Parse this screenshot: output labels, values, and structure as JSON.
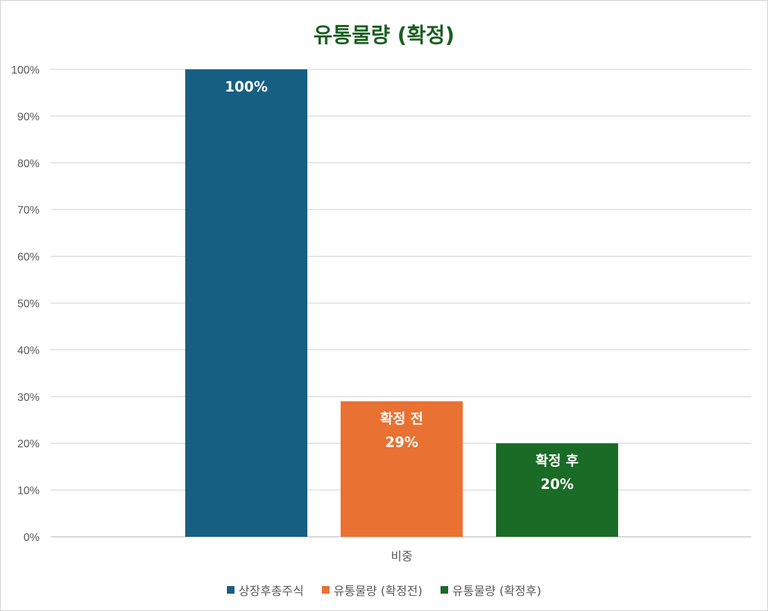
{
  "chart_data": {
    "type": "bar",
    "title": "유통물량 (확정)",
    "categories": [
      "비중"
    ],
    "series": [
      {
        "name": "상장후총주식",
        "values": [
          100
        ],
        "color": "#175f82",
        "label": [
          "100%"
        ]
      },
      {
        "name": "유통물량 (확정전)",
        "values": [
          29
        ],
        "color": "#e97132",
        "label": [
          "확정 전",
          "29%"
        ]
      },
      {
        "name": "유통물량 (확정후)",
        "values": [
          20
        ],
        "color": "#1a6b26",
        "label": [
          "확정 후",
          "20%"
        ]
      }
    ],
    "ylim": [
      0,
      100
    ],
    "yticks": [
      "0%",
      "10%",
      "20%",
      "30%",
      "40%",
      "50%",
      "60%",
      "70%",
      "80%",
      "90%",
      "100%"
    ],
    "ytick_values": [
      0,
      10,
      20,
      30,
      40,
      50,
      60,
      70,
      80,
      90,
      100
    ],
    "xlabel": "",
    "ylabel": "",
    "grid": true,
    "legend_position": "bottom"
  }
}
